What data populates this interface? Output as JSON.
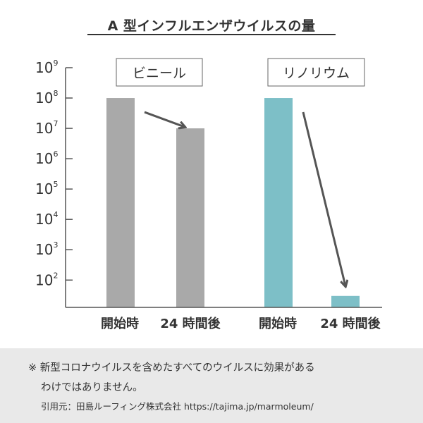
{
  "title": "A 型インフルエンザウイルスの量",
  "chart_data": [
    {
      "type": "bar",
      "panel_label": "ビニール",
      "categories": [
        "開始時",
        "24 時間後"
      ],
      "values": [
        100000000,
        10000000
      ],
      "y_scale": "log",
      "ylim_exponents": [
        1.1,
        9
      ],
      "y_ticks": [
        {
          "base": "10",
          "exp": "2",
          "value": 100
        },
        {
          "base": "10",
          "exp": "3",
          "value": 1000
        },
        {
          "base": "10",
          "exp": "4",
          "value": 10000
        },
        {
          "base": "10",
          "exp": "5",
          "value": 100000
        },
        {
          "base": "10",
          "exp": "6",
          "value": 1000000
        },
        {
          "base": "10",
          "exp": "7",
          "value": 10000000
        },
        {
          "base": "10",
          "exp": "8",
          "value": 100000000
        },
        {
          "base": "10",
          "exp": "9",
          "value": 1000000000
        }
      ],
      "color": "#a9a9a9"
    },
    {
      "type": "bar",
      "panel_label": "リノリウム",
      "categories": [
        "開始時",
        "24 時間後"
      ],
      "values": [
        100000000,
        30
      ],
      "y_scale": "log",
      "color": "#7dbfc7"
    }
  ],
  "footer": {
    "note_line1": "※ 新型コロナウイルスを含めたすべてのウイルスに効果がある",
    "note_line2": "わけではありません。",
    "citation": "引用元：田島ルーフィング株式会社 https://tajima.jp/marmoleum/"
  },
  "colors": {
    "axis": "#555555",
    "arrow": "#555555",
    "footer_bg": "#e9e9e9"
  }
}
